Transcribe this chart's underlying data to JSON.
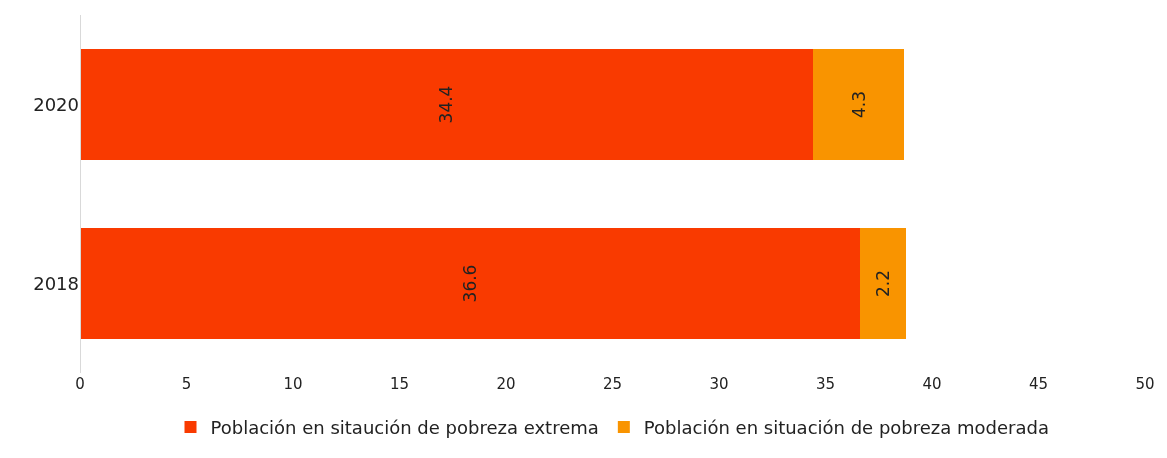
{
  "chart_data": {
    "type": "bar",
    "orientation": "horizontal",
    "stacked": true,
    "categories": [
      "2020",
      "2018"
    ],
    "series": [
      {
        "name": "Población en sitaución de pobreza extrema",
        "color": "#f93a00",
        "values": [
          34.4,
          36.6
        ]
      },
      {
        "name": "Población en situación de pobreza moderada",
        "color": "#f99400",
        "values": [
          4.3,
          2.2
        ]
      }
    ],
    "xlim": [
      0,
      50
    ],
    "xticks": [
      0,
      5,
      10,
      15,
      20,
      25,
      30,
      35,
      40,
      45,
      50
    ],
    "legend": "bottom",
    "data_labels": true
  }
}
